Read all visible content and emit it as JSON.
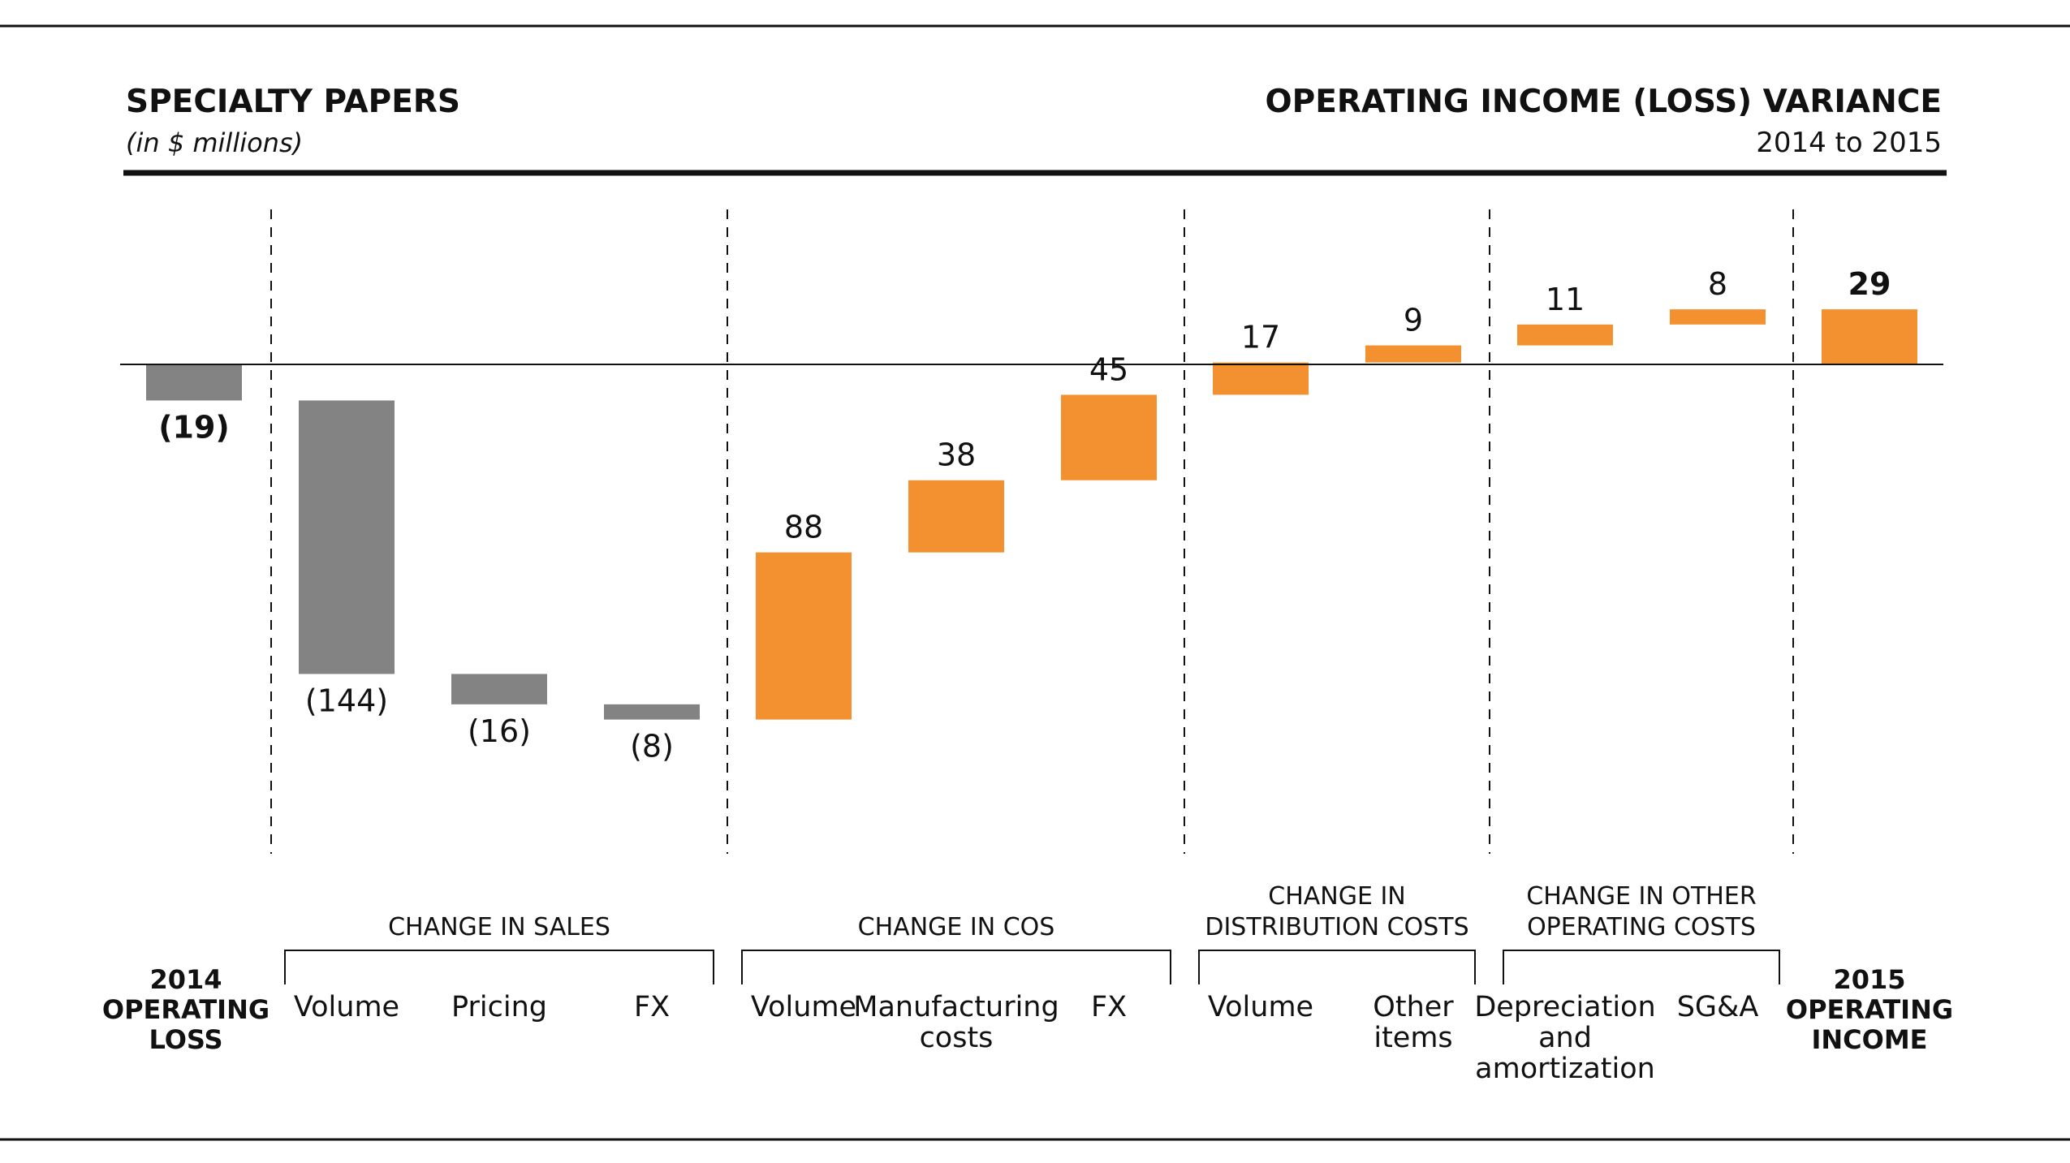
{
  "colors": {
    "negative": "#838383",
    "positive": "#f39130",
    "text": "#111111"
  },
  "header": {
    "left_title": "SPECIALTY PAPERS",
    "left_subtitle": "(in $ millions)",
    "right_title": "OPERATING INCOME (LOSS) VARIANCE",
    "right_subtitle": "2014 to 2015"
  },
  "chart_data": {
    "type": "bar",
    "subtype": "waterfall",
    "unit": "$ millions",
    "start": {
      "label_lines": [
        "2014",
        "OPERATING",
        "LOSS"
      ],
      "value": -19,
      "value_label": "(19)"
    },
    "end": {
      "label_lines": [
        "2015",
        "OPERATING",
        "INCOME"
      ],
      "value": 29,
      "value_label": "29"
    },
    "groups": [
      {
        "label_lines": [
          "CHANGE IN SALES"
        ],
        "items": [
          {
            "label_lines": [
              "Volume"
            ],
            "value": -144,
            "value_label": "(144)"
          },
          {
            "label_lines": [
              "Pricing"
            ],
            "value": -16,
            "value_label": "(16)"
          },
          {
            "label_lines": [
              "FX"
            ],
            "value": -8,
            "value_label": "(8)"
          }
        ]
      },
      {
        "label_lines": [
          "CHANGE IN COS"
        ],
        "items": [
          {
            "label_lines": [
              "Volume"
            ],
            "value": 88,
            "value_label": "88"
          },
          {
            "label_lines": [
              "Manufacturing",
              "costs"
            ],
            "value": 38,
            "value_label": "38"
          },
          {
            "label_lines": [
              "FX"
            ],
            "value": 45,
            "value_label": "45"
          }
        ]
      },
      {
        "label_lines": [
          "CHANGE IN",
          "DISTRIBUTION COSTS"
        ],
        "items": [
          {
            "label_lines": [
              "Volume"
            ],
            "value": 17,
            "value_label": "17"
          },
          {
            "label_lines": [
              "Other",
              "items"
            ],
            "value": 9,
            "value_label": "9"
          }
        ]
      },
      {
        "label_lines": [
          "CHANGE IN OTHER",
          "OPERATING COSTS"
        ],
        "items": [
          {
            "label_lines": [
              "Depreciation",
              "and",
              "amortization"
            ],
            "value": 11,
            "value_label": "11"
          },
          {
            "label_lines": [
              "SG&A"
            ],
            "value": 8,
            "value_label": "8"
          }
        ]
      }
    ]
  }
}
